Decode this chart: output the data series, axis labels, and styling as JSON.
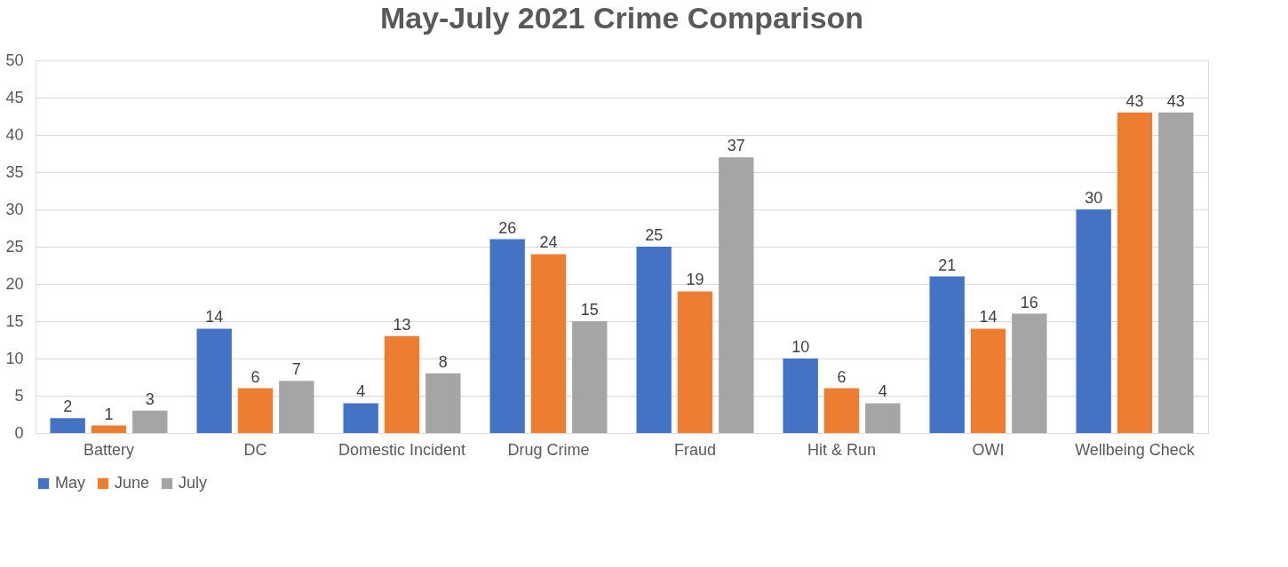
{
  "chart_data": {
    "type": "bar",
    "title": "May-July 2021 Crime Comparison",
    "categories": [
      "Battery",
      "DC",
      "Domestic Incident",
      "Drug Crime",
      "Fraud",
      "Hit & Run",
      "OWI",
      "Wellbeing Check"
    ],
    "series": [
      {
        "name": "May",
        "color": "#4472c4",
        "values": [
          2,
          14,
          4,
          26,
          25,
          10,
          21,
          30
        ]
      },
      {
        "name": "June",
        "color": "#ed7d31",
        "values": [
          1,
          6,
          13,
          24,
          19,
          6,
          14,
          43
        ]
      },
      {
        "name": "July",
        "color": "#a5a5a5",
        "values": [
          3,
          7,
          8,
          15,
          37,
          4,
          16,
          43
        ]
      }
    ],
    "ylim": [
      0,
      50
    ],
    "yticks": [
      0,
      5,
      10,
      15,
      20,
      25,
      30,
      35,
      40,
      45,
      50
    ],
    "grid": "y",
    "legend": "bottom",
    "data_labels": true
  }
}
